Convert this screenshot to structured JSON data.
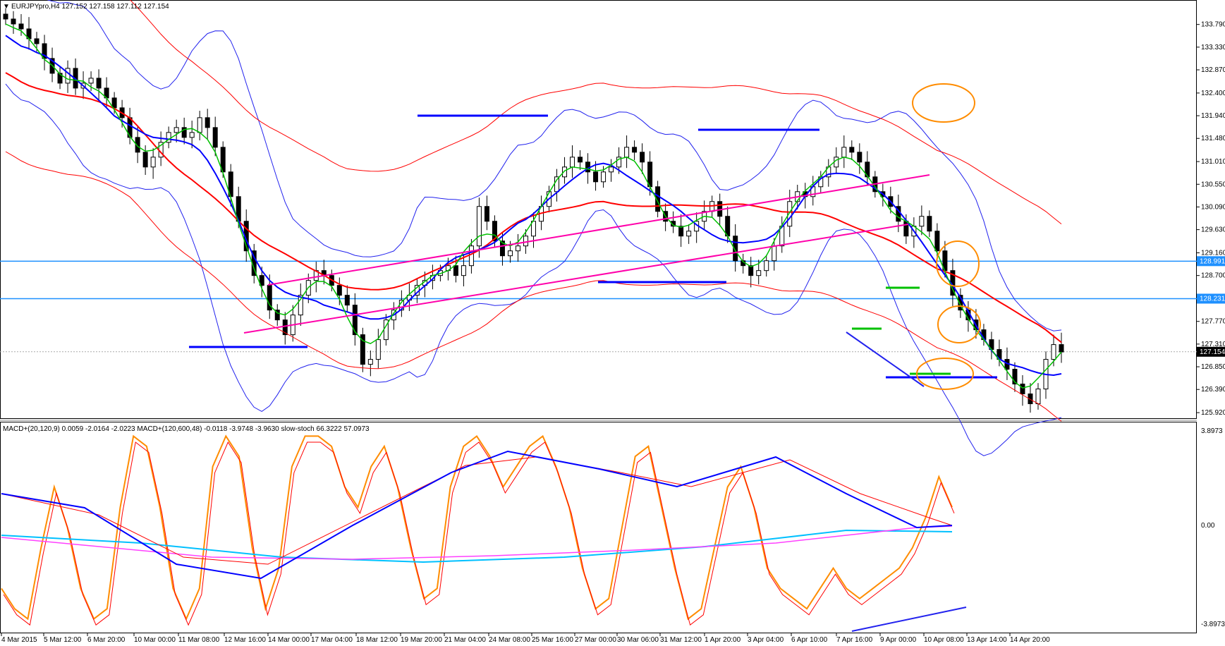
{
  "header": {
    "symbol_line": "EURJPYpro,H4  127.152 127.158 127.112 127.154",
    "indicator_line": "MACD+(20,120,9) 0.0059 -2.0164 -2.0223   MACD+(120,600,48) -0.0118 -3.9748 -3.9630   slow-stoch 66.3222 57.0973"
  },
  "colors": {
    "bull_candle": "#ffffff",
    "bear_candle": "#000000",
    "ma_green": "#00c000",
    "ma_blue": "#0000ff",
    "ma_red": "#ff0000",
    "bollinger": "#2222ee",
    "trend_pink": "#ff00aa",
    "hline_blue": "#1e90ff",
    "annotation_orange": "#ff8c00",
    "stoch_orange": "#ff8c00",
    "macd_cyan": "#00c0ff",
    "macd_magenta": "#ff40ff"
  },
  "chart_data": [
    {
      "type": "candlestick",
      "title": "EURJPYpro,H4",
      "current_price": "127.154",
      "x_ticks": [
        "4 Mar 2015",
        "5 Mar 12:00",
        "6 Mar 20:00",
        "10 Mar 00:00",
        "11 Mar 08:00",
        "12 Mar 16:00",
        "14 Mar 00:00",
        "17 Mar 04:00",
        "18 Mar 12:00",
        "19 Mar 20:00",
        "21 Mar 04:00",
        "24 Mar 08:00",
        "25 Mar 16:00",
        "27 Mar 00:00",
        "30 Mar 06:00",
        "31 Mar 12:00",
        "1 Apr 20:00",
        "3 Apr 04:00",
        "6 Apr 10:00",
        "7 Apr 16:00",
        "9 Apr 00:00",
        "10 Apr 08:00",
        "13 Apr 14:00",
        "14 Apr 20:00"
      ],
      "y_ticks": [
        "133.790",
        "133.330",
        "132.870",
        "132.400",
        "131.940",
        "131.480",
        "131.010",
        "130.550",
        "130.090",
        "129.630",
        "129.160",
        "128.700",
        "127.770",
        "127.310",
        "126.850",
        "126.390",
        "125.920"
      ],
      "price_labels": [
        "128.991",
        "128.231"
      ],
      "ylim": [
        125.85,
        134.2
      ],
      "horizontal_levels": [
        128.991,
        128.231
      ],
      "closes": [
        133.9,
        133.8,
        133.7,
        133.5,
        133.4,
        133.1,
        132.8,
        132.6,
        132.9,
        132.5,
        132.6,
        132.7,
        132.5,
        132.3,
        132.1,
        131.9,
        131.5,
        131.2,
        130.9,
        131.1,
        131.4,
        131.6,
        131.7,
        131.5,
        131.6,
        131.9,
        131.7,
        131.3,
        130.8,
        130.3,
        129.8,
        129.2,
        128.7,
        128.5,
        128.0,
        127.8,
        127.5,
        127.9,
        128.3,
        128.6,
        128.8,
        128.7,
        128.5,
        128.3,
        128.1,
        127.5,
        126.9,
        127.0,
        127.4,
        127.8,
        128.0,
        128.2,
        128.3,
        128.5,
        128.6,
        128.7,
        128.8,
        128.9,
        128.7,
        128.9,
        129.3,
        130.1,
        129.8,
        129.4,
        129.1,
        129.2,
        129.3,
        129.5,
        129.8,
        130.1,
        130.4,
        130.7,
        130.9,
        131.1,
        131.0,
        130.8,
        130.6,
        130.8,
        130.9,
        131.1,
        131.3,
        131.2,
        131.0,
        130.5,
        130.0,
        129.8,
        129.7,
        129.5,
        129.6,
        129.8,
        130.0,
        130.2,
        129.9,
        129.5,
        129.0,
        128.9,
        128.7,
        128.8,
        129.0,
        129.3,
        129.7,
        130.2,
        130.4,
        130.3,
        130.5,
        130.7,
        130.9,
        131.1,
        131.3,
        131.2,
        131.0,
        130.7,
        130.4,
        130.3,
        130.1,
        129.8,
        129.5,
        129.7,
        129.9,
        129.6,
        129.2,
        128.8,
        128.3,
        128.0,
        127.8,
        127.6,
        127.4,
        127.2,
        127.0,
        126.8,
        126.5,
        126.3,
        126.1,
        126.4,
        127.0,
        127.3,
        127.15
      ]
    },
    {
      "type": "line",
      "title": "MACD+ / slow-stoch",
      "y_ticks": [
        "3.8973",
        "0.00",
        "-3.8973"
      ],
      "ylim": [
        -3.8973,
        3.8973
      ],
      "series": [
        {
          "name": "slow-stoch",
          "values": [
            20,
            10,
            5,
            40,
            70,
            50,
            20,
            5,
            10,
            60,
            95,
            90,
            60,
            20,
            5,
            20,
            80,
            95,
            85,
            40,
            10,
            30,
            80,
            95,
            95,
            90,
            70,
            60,
            80,
            90,
            70,
            40,
            15,
            20,
            70,
            90,
            95,
            85,
            70,
            80,
            90,
            95,
            80,
            60,
            30,
            10,
            15,
            50,
            85,
            90,
            60,
            30,
            5,
            10,
            40,
            70,
            80,
            60,
            30,
            20,
            15,
            10,
            20,
            30,
            20,
            15,
            20,
            25,
            30,
            40,
            55,
            75,
            60
          ]
        }
      ]
    }
  ]
}
